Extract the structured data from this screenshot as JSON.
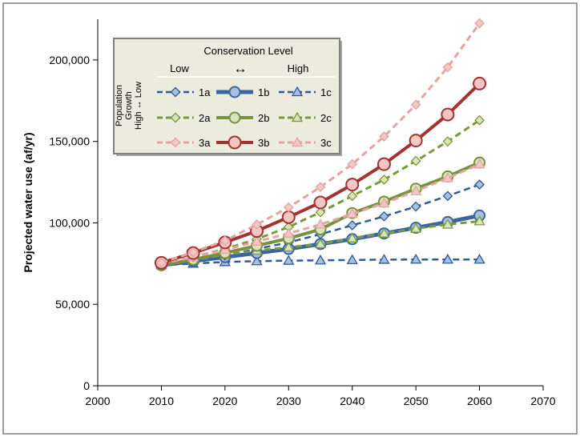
{
  "chart_data": {
    "type": "line",
    "title": "",
    "xlabel": "",
    "ylabel": "Projected water use (af/yr)",
    "xlim": [
      2000,
      2070
    ],
    "ylim": [
      0,
      225000
    ],
    "x_ticks": [
      2000,
      2010,
      2020,
      2030,
      2040,
      2050,
      2060,
      2070
    ],
    "y_ticks": [
      0,
      50000,
      100000,
      150000,
      200000
    ],
    "x_tick_labels": [
      "2000",
      "2010",
      "2020",
      "2030",
      "2040",
      "2050",
      "2060",
      "2070"
    ],
    "y_tick_labels": [
      "0",
      "50,000",
      "100,000",
      "150,000",
      "200,000"
    ],
    "grid": false,
    "x": [
      2010,
      2015,
      2020,
      2025,
      2030,
      2035,
      2040,
      2045,
      2050,
      2055,
      2060
    ],
    "legend": {
      "placement": "top-left",
      "header": "Conservation Level",
      "col_low": "Low",
      "col_arrow": "↔",
      "col_high": "High",
      "row_title_1": "Population",
      "row_title_2": "Growth",
      "row_title_3": "High ↔ Low"
    },
    "series": [
      {
        "name": "1a",
        "color": "#2e5b9a",
        "style": "dashed",
        "marker": "diamond",
        "fill": "#a7c0de",
        "width": 2.5,
        "marker_size": 5.5,
        "values": [
          74000,
          77000,
          80000,
          84000,
          88000,
          93000,
          98500,
          104000,
          110000,
          116500,
          123500
        ]
      },
      {
        "name": "1b",
        "color": "#3a66a0",
        "style": "solid",
        "marker": "circle",
        "fill": "#a7c0de",
        "width": 5,
        "marker_size": 6.5,
        "values": [
          74000,
          76500,
          79000,
          81500,
          84000,
          87000,
          90000,
          93500,
          97000,
          100500,
          104500
        ]
      },
      {
        "name": "1c",
        "color": "#2e5b9a",
        "style": "dashed",
        "marker": "triangle",
        "fill": "#a7c0de",
        "width": 2.5,
        "marker_size": 6,
        "values": [
          74000,
          75000,
          76000,
          76500,
          76800,
          77000,
          77200,
          77400,
          77500,
          77500,
          77500
        ]
      },
      {
        "name": "2a",
        "color": "#7a9a3a",
        "style": "dashed",
        "marker": "diamond",
        "fill": "#d7e4bd",
        "width": 3,
        "marker_size": 5.5,
        "values": [
          74500,
          79000,
          84000,
          90000,
          97500,
          106500,
          116500,
          126500,
          138000,
          150000,
          163000
        ]
      },
      {
        "name": "2b",
        "color": "#76923c",
        "style": "solid",
        "marker": "circle",
        "fill": "#d7e4bd",
        "width": 4,
        "marker_size": 6.5,
        "values": [
          74000,
          77500,
          81500,
          86000,
          90500,
          96000,
          106000,
          113000,
          121000,
          128500,
          137000
        ]
      },
      {
        "name": "2c",
        "color": "#7a9a3a",
        "style": "dashed",
        "marker": "triangle",
        "fill": "#d7e4bd",
        "width": 3,
        "marker_size": 6,
        "values": [
          74000,
          77000,
          80500,
          83000,
          85000,
          87000,
          90500,
          93500,
          96500,
          99000,
          101000
        ]
      },
      {
        "name": "3a",
        "color": "#e6a3a3",
        "style": "dashed",
        "marker": "diamond",
        "fill": "#f2c7c5",
        "width": 3,
        "marker_size": 5.5,
        "values": [
          75500,
          82000,
          89000,
          99000,
          109500,
          122000,
          136000,
          153000,
          172500,
          195500,
          222500
        ]
      },
      {
        "name": "3b",
        "color": "#a33330",
        "style": "solid",
        "marker": "circle",
        "fill": "#f2c7c5",
        "width": 4,
        "marker_size": 7.5,
        "values": [
          75500,
          81500,
          88000,
          95000,
          103500,
          112500,
          123500,
          136000,
          150500,
          166500,
          185500
        ]
      },
      {
        "name": "3c",
        "color": "#e6a3a3",
        "style": "dashed",
        "marker": "triangle",
        "fill": "#f2c7c5",
        "width": 3,
        "marker_size": 6,
        "values": [
          75000,
          79000,
          83500,
          88500,
          93500,
          99000,
          105500,
          112000,
          119500,
          127500,
          136000
        ]
      }
    ]
  }
}
